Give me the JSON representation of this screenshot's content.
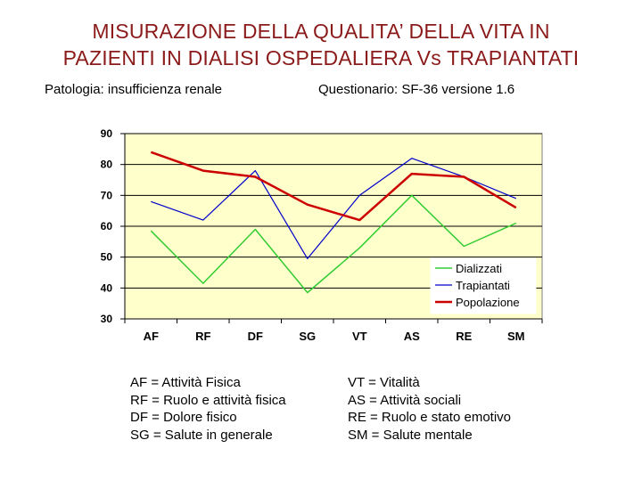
{
  "title": {
    "line1": "MISURAZIONE DELLA QUALITA’ DELLA VITA IN",
    "line2": "PAZIENTI IN DIALISI OSPEDALIERA Vs TRAPIANTATI"
  },
  "subtitle_left": "Patologia: insufficienza renale",
  "subtitle_right": "Questionario: SF-36 versione 1.6",
  "colors": {
    "title": "#8B1A1A",
    "plot_background": "#FFFFCC",
    "grid": "#000000"
  },
  "chart_data": {
    "type": "line",
    "categories": [
      "AF",
      "RF",
      "DF",
      "SG",
      "VT",
      "AS",
      "RE",
      "SM"
    ],
    "ylim": [
      30,
      90
    ],
    "yticks": [
      "30",
      "40",
      "50",
      "60",
      "70",
      "80",
      "90"
    ],
    "grid": true,
    "legend_position": "bottom-right",
    "series": [
      {
        "name": "Dializzati",
        "color": "#33CC33",
        "values": [
          58.5,
          41.5,
          59,
          38.5,
          53,
          70,
          53.5,
          61
        ]
      },
      {
        "name": "Trapiantati",
        "color": "#0000CC",
        "values": [
          68,
          62,
          78,
          49.5,
          70,
          82,
          76,
          69
        ]
      },
      {
        "name": "Popolazione",
        "color": "#CC0000",
        "values": [
          84,
          78,
          76,
          67,
          62,
          77,
          76,
          66
        ]
      }
    ]
  },
  "abbreviations_left": [
    "AF = Attività Fisica",
    "RF = Ruolo e attività fisica",
    "DF = Dolore fisico",
    "SG = Salute in generale"
  ],
  "abbreviations_right": [
    "VT = Vitalità",
    "AS = Attività sociali",
    "RE = Ruolo e stato emotivo",
    "SM = Salute mentale"
  ]
}
